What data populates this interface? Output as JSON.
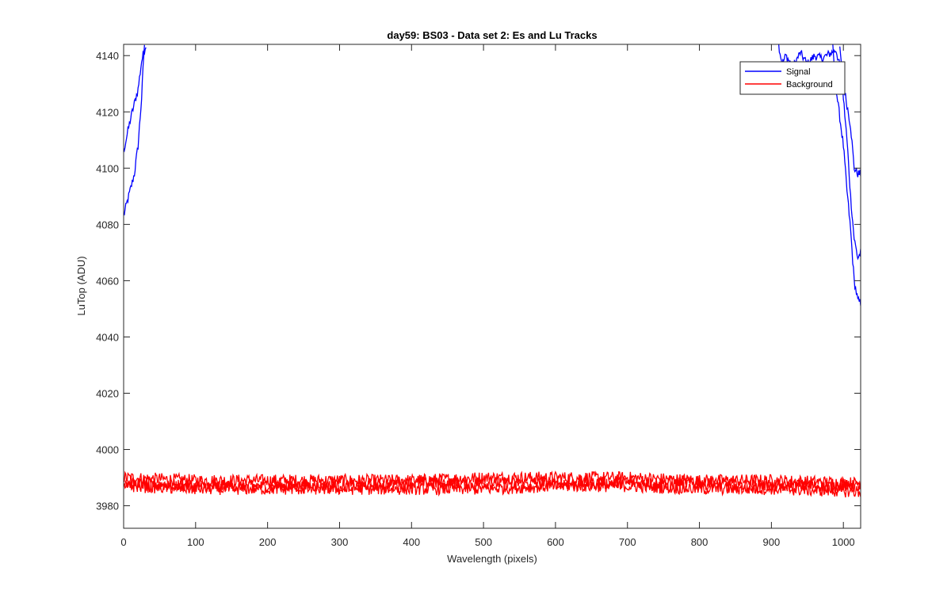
{
  "chart_data": {
    "type": "line",
    "title": "day59: BS03 - Data set 2: Es and Lu Tracks",
    "xlabel": "Wavelength (pixels)",
    "ylabel": "LuTop (ADU)",
    "xlim": [
      0,
      1024
    ],
    "ylim": [
      3972,
      4144
    ],
    "xticks": [
      0,
      100,
      200,
      300,
      400,
      500,
      600,
      700,
      800,
      900,
      1000
    ],
    "yticks": [
      3980,
      4000,
      4020,
      4040,
      4060,
      4080,
      4100,
      4120,
      4140
    ],
    "grid": false,
    "legend": {
      "position": "top-right",
      "entries": [
        "Signal",
        "Background"
      ]
    },
    "colors": {
      "Signal": "#0000ff",
      "Background": "#ff0000"
    },
    "series": [
      {
        "name": "Signal",
        "tracks": [
          {
            "x": [
              0,
              5,
              10,
              15,
              20,
              25,
              28,
              29
            ],
            "y": [
              4083,
              4088,
              4093,
              4098,
              4108,
              4125,
              4140,
              4144
            ]
          },
          {
            "x": [
              0,
              5,
              10,
              15,
              20,
              25,
              30,
              31
            ],
            "y": [
              4106,
              4112,
              4118,
              4123,
              4128,
              4138,
              4143,
              4144
            ]
          },
          {
            "x": [
              910,
              915,
              920,
              930,
              940,
              950,
              960,
              970,
              990,
              1000,
              1010,
              1015,
              1020,
              1024
            ],
            "y": [
              4144,
              4137,
              4140,
              4136,
              4141,
              4137,
              4140,
              4139,
              4142,
              4130,
              4115,
              4100,
              4098,
              4098
            ]
          },
          {
            "x": [
              995,
              1000,
              1005,
              1010,
              1015,
              1020,
              1024
            ],
            "y": [
              4144,
              4125,
              4110,
              4090,
              4075,
              4068,
              4070
            ]
          },
          {
            "x": [
              985,
              990,
              1000,
              1005,
              1010,
              1015,
              1020,
              1024
            ],
            "y": [
              4144,
              4128,
              4108,
              4092,
              4078,
              4060,
              4053,
              4052
            ]
          }
        ]
      },
      {
        "name": "Background",
        "tracks": [
          {
            "x": [
              0,
              100,
              200,
              300,
              400,
              500,
              600,
              700,
              800,
              900,
              1024
            ],
            "y": [
              3990,
              3989,
              3989,
              3989,
              3989,
              3990,
              3990,
              3990,
              3989,
              3989,
              3988
            ]
          },
          {
            "x": [
              0,
              100,
              200,
              300,
              400,
              500,
              600,
              700,
              800,
              900,
              1024
            ],
            "y": [
              3988,
              3987,
              3987,
              3987,
              3988,
              3988,
              3988,
              3988,
              3988,
              3987,
              3987
            ]
          },
          {
            "x": [
              0,
              100,
              200,
              300,
              400,
              500,
              600,
              700,
              800,
              900,
              1024
            ],
            "y": [
              3987,
              3986,
              3986,
              3986,
              3986,
              3986,
              3987,
              3987,
              3986,
              3986,
              3985
            ]
          }
        ]
      }
    ]
  }
}
